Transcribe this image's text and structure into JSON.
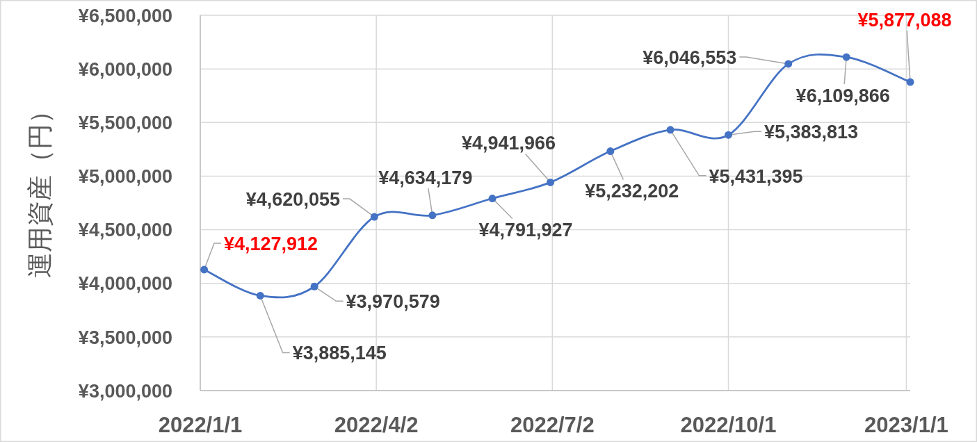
{
  "chart_data": {
    "type": "line",
    "ylabel": "運用資産（円）",
    "x": [
      "2022-01-03",
      "2022-02-01",
      "2022-03-01",
      "2022-04-01",
      "2022-05-01",
      "2022-06-01",
      "2022-07-01",
      "2022-08-01",
      "2022-09-01",
      "2022-10-01",
      "2022-11-01",
      "2022-12-01",
      "2023-01-03"
    ],
    "series": [
      {
        "color": "#4472c4",
        "values": [
          4127912,
          3885145,
          3970579,
          4620055,
          4634179,
          4791927,
          4941966,
          5232202,
          5431395,
          5383813,
          6046553,
          6109866,
          5877088
        ],
        "value_labels": [
          null,
          "¥3,885,145",
          "¥3,970,579",
          "¥4,620,055",
          "¥4,634,179",
          "¥4,791,927",
          "¥4,941,966",
          "¥5,232,202",
          "¥5,431,395",
          "¥5,383,813",
          "¥6,046,553",
          "¥6,109,866",
          null
        ]
      }
    ],
    "xlim": [
      "2022-01-01",
      "2023-01-03"
    ],
    "xticks": [
      {
        "value": "2022-01-01",
        "label": "2022/1/1"
      },
      {
        "value": "2022-04-02",
        "label": "2022/4/2"
      },
      {
        "value": "2022-07-02",
        "label": "2022/7/2"
      },
      {
        "value": "2022-10-01",
        "label": "2022/10/1"
      },
      {
        "value": "2023-01-01",
        "label": "2023/1/1"
      }
    ],
    "ylim": [
      3000000,
      6500000
    ],
    "yticks": [
      {
        "value": 3000000,
        "label": "¥3,000,000"
      },
      {
        "value": 3500000,
        "label": "¥3,500,000"
      },
      {
        "value": 4000000,
        "label": "¥4,000,000"
      },
      {
        "value": 4500000,
        "label": "¥4,500,000"
      },
      {
        "value": 5000000,
        "label": "¥5,000,000"
      },
      {
        "value": 5500000,
        "label": "¥5,500,000"
      },
      {
        "value": 6000000,
        "label": "¥6,000,000"
      },
      {
        "value": 6500000,
        "label": "¥6,500,000"
      }
    ],
    "grid": true,
    "marker": "circle",
    "line_style": "solid",
    "annotations": [
      {
        "text": "¥4,127,912",
        "x": "2022-01-03",
        "y": 4127912
      },
      {
        "text": "¥5,877,088",
        "x": "2023-01-03",
        "y": 5877088
      }
    ]
  }
}
